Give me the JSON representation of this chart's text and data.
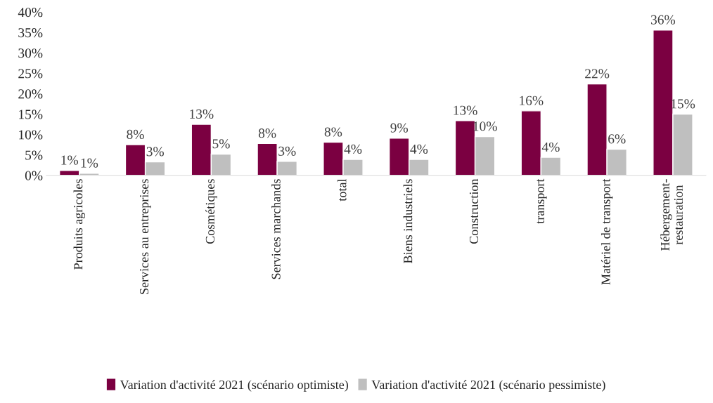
{
  "chart_data": {
    "type": "bar",
    "categories": [
      "Produits agricoles",
      "Services au entreprises",
      "Cosmétiques",
      "Services marchands",
      "total",
      "Biens industriels",
      "Construction",
      "transport",
      "Matériel de transport",
      "Hébergement-\nrestauration"
    ],
    "series": [
      {
        "name": "Variation d'activité 2021 (scénario optimiste)",
        "color": "#7b0041",
        "values": [
          1.2,
          7.5,
          12.5,
          7.8,
          8.1,
          9.1,
          13.4,
          15.8,
          22.4,
          35.6
        ],
        "value_labels": [
          "1%",
          "8%",
          "13%",
          "8%",
          "8%",
          "9%",
          "13%",
          "16%",
          "22%",
          "36%"
        ]
      },
      {
        "name": "Variation d'activité 2021 (scénario pessimiste)",
        "color": "#bfbfbf",
        "values": [
          0.5,
          3.3,
          5.2,
          3.4,
          3.9,
          3.9,
          9.5,
          4.4,
          6.4,
          15.0
        ],
        "value_labels": [
          "1%",
          "3%",
          "5%",
          "3%",
          "4%",
          "4%",
          "10%",
          "4%",
          "6%",
          "15%"
        ]
      }
    ],
    "ylim": [
      0,
      40
    ],
    "yticks": [
      {
        "value": 0,
        "label": "0%"
      },
      {
        "value": 5,
        "label": "5%"
      },
      {
        "value": 10,
        "label": "10%"
      },
      {
        "value": 15,
        "label": "15%"
      },
      {
        "value": 20,
        "label": "20%"
      },
      {
        "value": 25,
        "label": "25%"
      },
      {
        "value": 30,
        "label": "30%"
      },
      {
        "value": 35,
        "label": "35%"
      },
      {
        "value": 40,
        "label": "40%"
      }
    ],
    "grid": false,
    "legend": "bottom"
  }
}
